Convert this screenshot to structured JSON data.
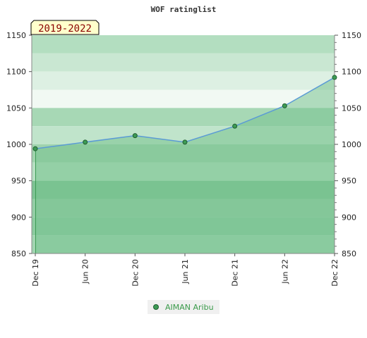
{
  "chart_data": {
    "type": "area",
    "title": "WOF ratinglist",
    "period_badge": "2019-2022",
    "x": [
      "Dec 19",
      "Jun 20",
      "Dec 20",
      "Jun 21",
      "Dec 21",
      "Jun 22",
      "Dec 22"
    ],
    "series": [
      {
        "name": "AIMAN Aribu",
        "values": [
          994,
          1003,
          1012,
          1003,
          1025,
          1053,
          1092
        ]
      }
    ],
    "ylim": [
      850,
      1150
    ],
    "yticks": [
      850,
      900,
      950,
      1000,
      1050,
      1100,
      1150
    ],
    "grid": true,
    "legend": "bottom-center",
    "colors": {
      "line": "#5b9bd5",
      "area": "#79c28f",
      "marker": "#3d9b55",
      "badge_bg": "#ffffcc"
    }
  }
}
